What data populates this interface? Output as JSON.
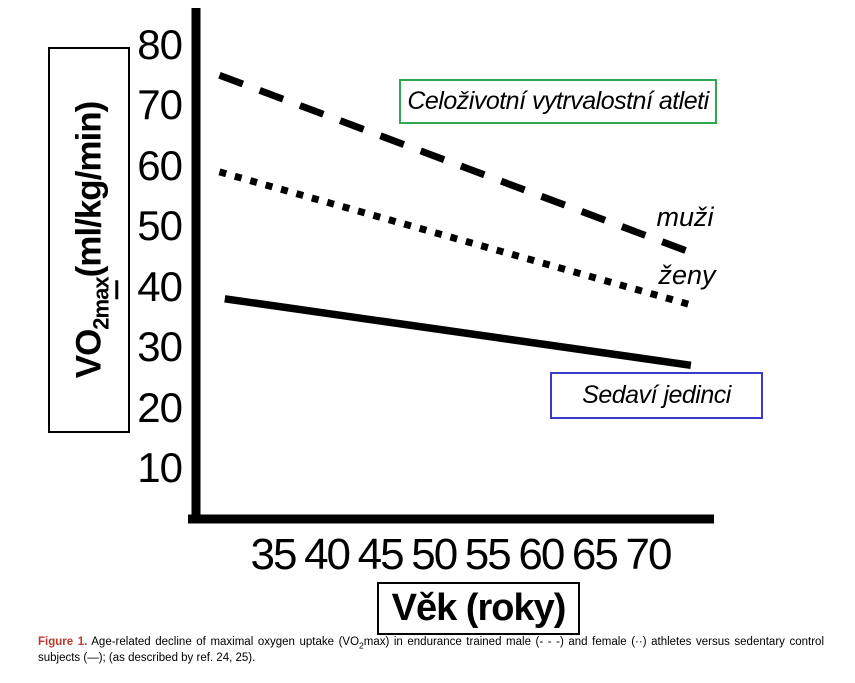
{
  "figure": {
    "ylabel": {
      "pre": "VO",
      "sub": "2max",
      "post": "(ml/kg/min)"
    },
    "xlabel": "Věk (roky)",
    "annotations": {
      "athletes_box": "Celoživotní vytrvalostní atleti",
      "male_line_label": "muži",
      "female_line_label": "ženy",
      "sedentary_box": "Sedaví jedinci"
    },
    "colors": {
      "athletes_box_border": "#2fa84f",
      "sedentary_box_border": "#3a3ac8",
      "figure_label_red": "#bf3a2b",
      "ink": "#000000"
    }
  },
  "caption": {
    "figure_label": "Figure 1.",
    "text_before_sub": " Age-related decline of maximal oxygen uptake (VO",
    "sub": "2",
    "text_after_sub": "max) in endurance trained male (- - -) and female (··) athletes versus sedentary control subjects (—); (as described by ref. 24, 25)."
  },
  "chart_data": {
    "type": "line",
    "title": "",
    "xlabel": "Věk (roky)",
    "ylabel": "VO2max (ml/kg/min)",
    "x_ticks": [
      35,
      40,
      45,
      50,
      55,
      60,
      65,
      70
    ],
    "y_ticks": [
      80,
      70,
      60,
      50,
      40,
      30,
      20,
      10
    ],
    "xlim": [
      29,
      76
    ],
    "ylim": [
      0,
      87
    ],
    "grid": false,
    "legend_position": "inline-annotations",
    "series": [
      {
        "name": "Celoživotní vytrvalostní atleti — muži (endurance trained male)",
        "style": "dashed",
        "points": [
          [
            30,
            75
          ],
          [
            75,
            45
          ]
        ]
      },
      {
        "name": "Celoživotní vytrvalostní atleti — ženy (endurance trained female)",
        "style": "dotted",
        "points": [
          [
            30,
            59
          ],
          [
            74,
            37
          ]
        ]
      },
      {
        "name": "Sedaví jedinci (sedentary control)",
        "style": "solid",
        "points": [
          [
            30.5,
            38
          ],
          [
            74,
            27
          ]
        ]
      }
    ]
  }
}
